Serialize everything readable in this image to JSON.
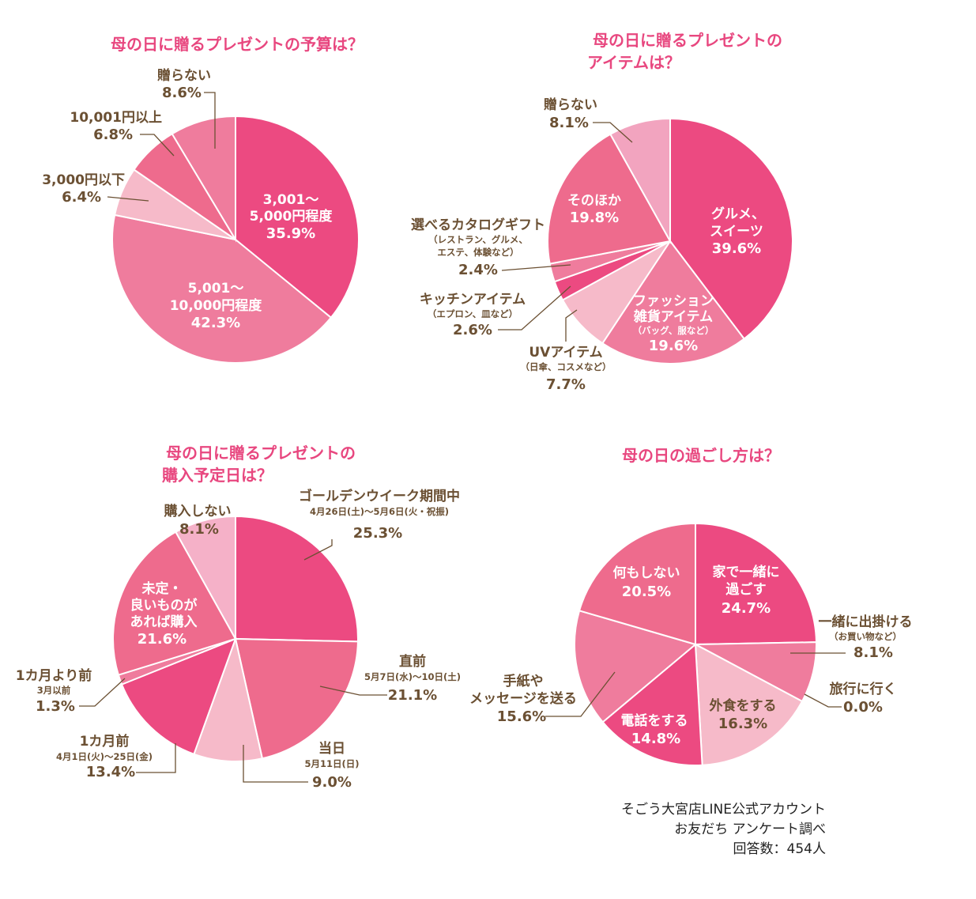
{
  "colors": {
    "title": "#e8477f",
    "label": "#6b5033",
    "p1": "#ec4a81",
    "p2": "#ef7c9d",
    "p3": "#f6bac9",
    "p4": "#f2a4bf",
    "p5": "#ee6b8d",
    "p6": "#f5b1c8"
  },
  "chart_data": [
    {
      "type": "pie",
      "title": "母の日に贈るプレゼントの予算は？",
      "slices": [
        {
          "label": "3,001〜5,000円程度",
          "value": 35.9
        },
        {
          "label": "5,001〜10,000円程度",
          "value": 42.3
        },
        {
          "label": "3,000円以下",
          "value": 6.4
        },
        {
          "label": "10,001円以上",
          "value": 6.8
        },
        {
          "label": "贈らない",
          "value": 8.6
        }
      ]
    },
    {
      "type": "pie",
      "title": "母の日に贈るプレゼントのアイテムは？",
      "slices": [
        {
          "label": "グルメ、スイーツ",
          "value": 39.6
        },
        {
          "label": "ファッション雑貨アイテム（バッグ、服など）",
          "value": 19.6
        },
        {
          "label": "UVアイテム（日傘、コスメなど）",
          "value": 7.7
        },
        {
          "label": "キッチンアイテム（エプロン、皿など）",
          "value": 2.6
        },
        {
          "label": "選べるカタログギフト（レストラン、グルメ、エステ、体験など）",
          "value": 2.4
        },
        {
          "label": "そのほか",
          "value": 19.8
        },
        {
          "label": "贈らない",
          "value": 8.1
        }
      ]
    },
    {
      "type": "pie",
      "title": "母の日に贈るプレゼントの購入予定日は？",
      "slices": [
        {
          "label": "ゴールデンウイーク期間中",
          "value": 25.3
        },
        {
          "label": "直前",
          "value": 21.1
        },
        {
          "label": "当日",
          "value": 9.0
        },
        {
          "label": "1カ月前",
          "value": 13.4
        },
        {
          "label": "1カ月より前",
          "value": 1.3
        },
        {
          "label": "未定・良いものがあれば購入",
          "value": 21.6
        },
        {
          "label": "購入しない",
          "value": 8.1
        }
      ]
    },
    {
      "type": "pie",
      "title": "母の日の過ごし方は？",
      "slices": [
        {
          "label": "家で一緒に過ごす",
          "value": 24.7
        },
        {
          "label": "一緒に出掛ける（お買い物など）",
          "value": 8.1
        },
        {
          "label": "旅行に行く",
          "value": 0.0
        },
        {
          "label": "外食をする",
          "value": 16.3
        },
        {
          "label": "電話をする",
          "value": 14.8
        },
        {
          "label": "手紙やメッセージを送る",
          "value": 15.6
        },
        {
          "label": "何もしない",
          "value": 20.5
        }
      ]
    }
  ],
  "text": {
    "c1": {
      "title": "母の日に贈るプレゼントの予算は？",
      "s1_l1": "3,001〜",
      "s1_l2": "5,000円程度",
      "s1_pct": "35.9%",
      "s2_l1": "5,001〜",
      "s2_l2": "10,000円程度",
      "s2_pct": "42.3%",
      "s3_l1": "3,000円以下",
      "s3_pct": "6.4%",
      "s4_l1": "10,001円以上",
      "s4_pct": "6.8%",
      "s5_l1": "贈らない",
      "s5_pct": "8.6%"
    },
    "c2": {
      "title_l1": "母の日に贈るプレゼントの",
      "title_l2": "アイテムは？",
      "s1_l1": "グルメ、",
      "s1_l2": "スイーツ",
      "s1_pct": "39.6%",
      "s2_l1": "ファッション",
      "s2_l2": "雑貨アイテム",
      "s2_sub": "（バッグ、服など）",
      "s2_pct": "19.6%",
      "s3_l1": "UVアイテム",
      "s3_sub": "（日傘、コスメなど）",
      "s3_pct": "7.7%",
      "s4_l1": "キッチンアイテム",
      "s4_sub": "（エプロン、皿など）",
      "s4_pct": "2.6%",
      "s5_l1": "選べるカタログギフト",
      "s5_sub1": "（レストラン、グルメ、",
      "s5_sub2": "エステ、体験など）",
      "s5_pct": "2.4%",
      "s6_l1": "そのほか",
      "s6_pct": "19.8%",
      "s7_l1": "贈らない",
      "s7_pct": "8.1%"
    },
    "c3": {
      "title_l1": "母の日に贈るプレゼントの",
      "title_l2": "購入予定日は？",
      "s1_l1": "ゴールデンウイーク期間中",
      "s1_sub": "4月26日(土)〜5月6日(火・祝振)",
      "s1_pct": "25.3%",
      "s2_l1": "直前",
      "s2_sub": "5月7日(水)〜10日(土)",
      "s2_pct": "21.1%",
      "s3_l1": "当日",
      "s3_sub": "5月11日(日)",
      "s3_pct": "9.0%",
      "s4_l1": "1カ月前",
      "s4_sub": "4月1日(火)〜25日(金)",
      "s4_pct": "13.4%",
      "s5_l1": "1カ月より前",
      "s5_sub": "3月以前",
      "s5_pct": "1.3%",
      "s6_l1": "未定・",
      "s6_l2": "良いものが",
      "s6_l3": "あれば購入",
      "s6_pct": "21.6%",
      "s7_l1": "購入しない",
      "s7_pct": "8.1%"
    },
    "c4": {
      "title": "母の日の過ごし方は？",
      "s1_l1": "家で一緒に",
      "s1_l2": "過ごす",
      "s1_pct": "24.7%",
      "s2_l1": "一緒に出掛ける",
      "s2_sub": "（お買い物など）",
      "s2_pct": "8.1%",
      "s3_l1": "旅行に行く",
      "s3_pct": "0.0%",
      "s4_l1": "外食をする",
      "s4_pct": "16.3%",
      "s5_l1": "電話をする",
      "s5_pct": "14.8%",
      "s6_l1": "手紙や",
      "s6_l2": "メッセージを送る",
      "s6_pct": "15.6%",
      "s7_l1": "何もしない",
      "s7_pct": "20.5%"
    }
  },
  "source": {
    "line1": "そごう大宮店LINE公式アカウント",
    "line2": "お友だち アンケート調べ",
    "line3": "回答数：454人"
  }
}
